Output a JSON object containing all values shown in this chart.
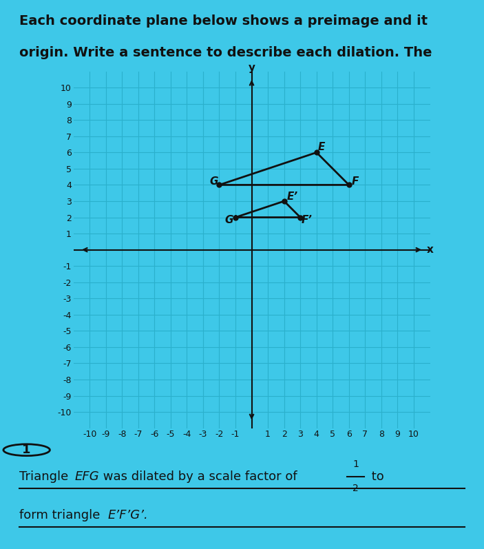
{
  "bg_color": "#3ec8e8",
  "grid_color": "#2ab0cc",
  "axis_color": "#111111",
  "triangle_EFG": {
    "E": [
      4,
      6
    ],
    "F": [
      6,
      4
    ],
    "G": [
      -2,
      4
    ]
  },
  "triangle_EpFpGp": {
    "Ep": [
      2,
      3
    ],
    "Fp": [
      3,
      2
    ],
    "Gp": [
      -1,
      2
    ]
  },
  "triangle_color": "#111111",
  "point_color": "#111111",
  "xlim": [
    -10,
    10
  ],
  "ylim": [
    -10,
    10
  ],
  "circle_label": "1",
  "fraction_num": "1",
  "fraction_den": "2",
  "title_fontsize": 14,
  "tick_fontsize": 9,
  "label_fontsize": 11
}
